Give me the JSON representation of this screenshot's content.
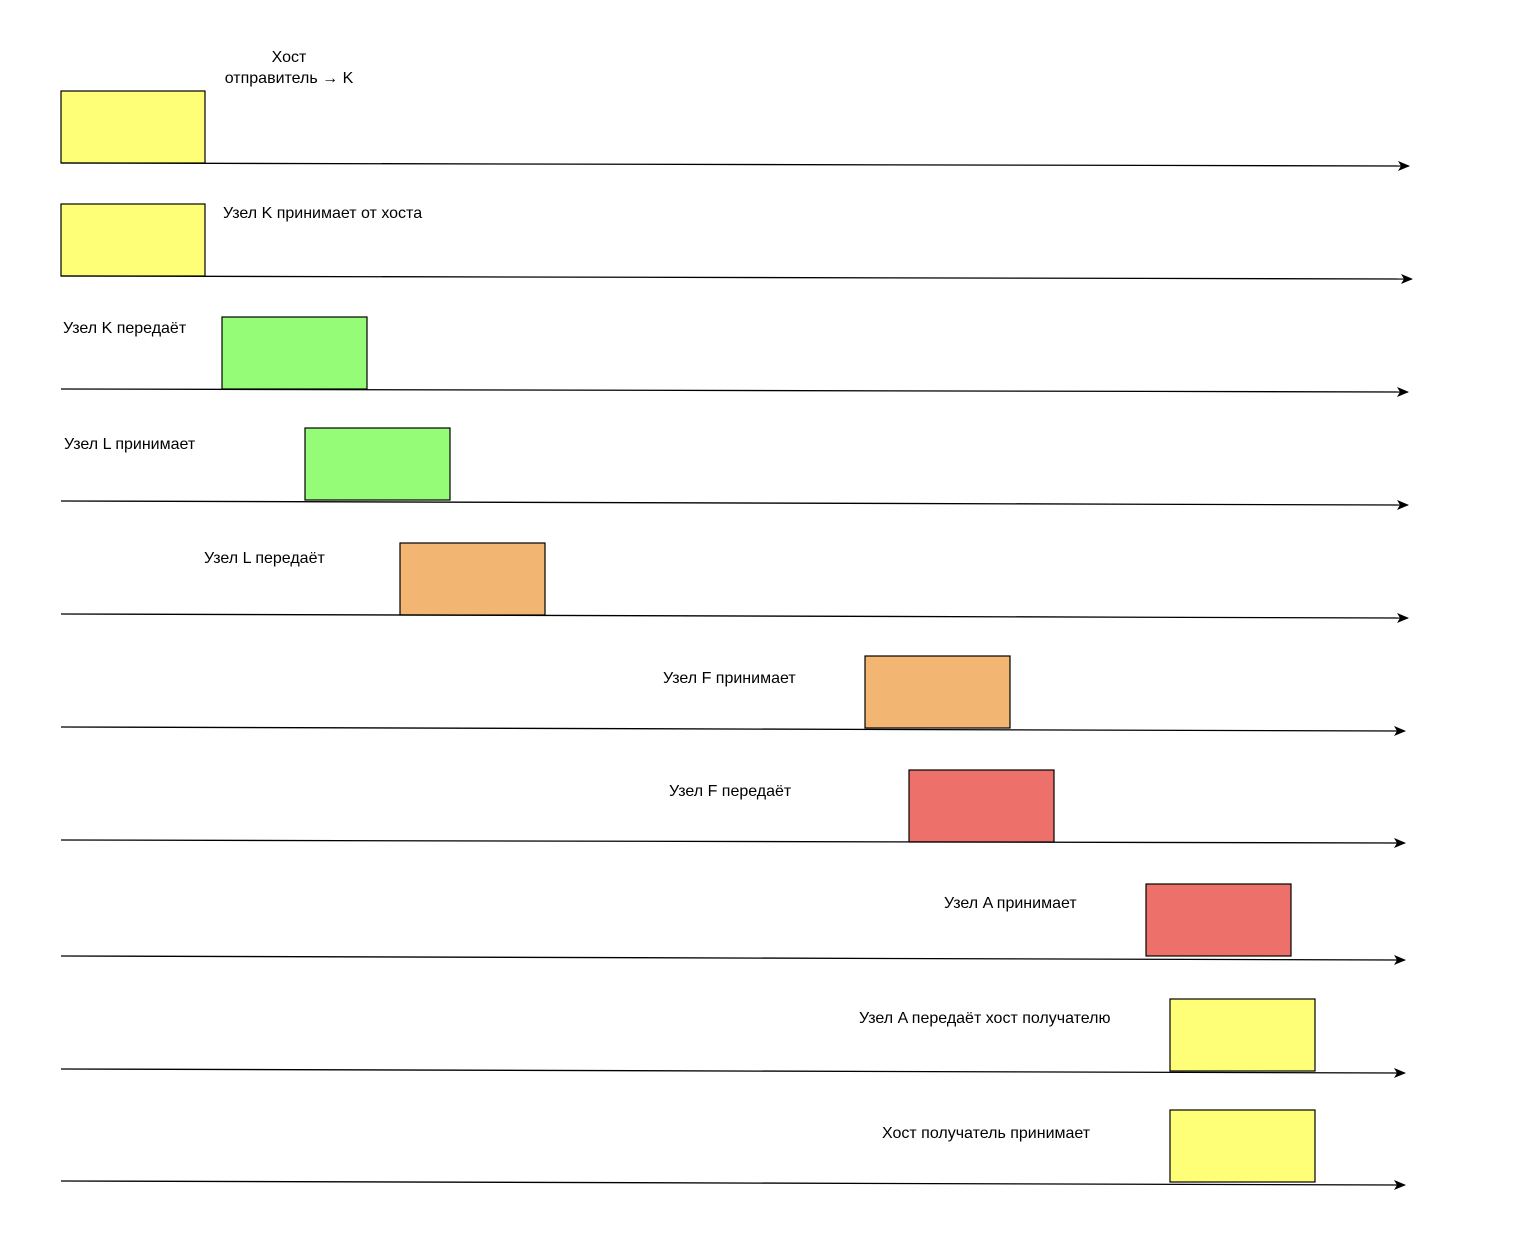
{
  "colors": {
    "yellow": "#ffff77",
    "green": "#94fc77",
    "orange": "#f2b672",
    "red": "#ed706b",
    "line": "#000000"
  },
  "lanes": [
    {
      "label_lines": [
        "Хост",
        "отправитель → K"
      ],
      "color": "yellow"
    },
    {
      "label_lines": [
        "Узел K принимает от хоста"
      ],
      "color": "yellow"
    },
    {
      "label_lines": [
        "Узел K передаёт"
      ],
      "color": "green"
    },
    {
      "label_lines": [
        "Узел L принимает"
      ],
      "color": "green"
    },
    {
      "label_lines": [
        "Узел L передаёт"
      ],
      "color": "orange"
    },
    {
      "label_lines": [
        "Узел F принимает"
      ],
      "color": "orange"
    },
    {
      "label_lines": [
        "Узел F передаёт"
      ],
      "color": "red"
    },
    {
      "label_lines": [
        "Узел A принимает"
      ],
      "color": "red"
    },
    {
      "label_lines": [
        "Узел A передаёт хост получателю"
      ],
      "color": "yellow"
    },
    {
      "label_lines": [
        "Хост получатель принимает"
      ],
      "color": "yellow"
    }
  ]
}
